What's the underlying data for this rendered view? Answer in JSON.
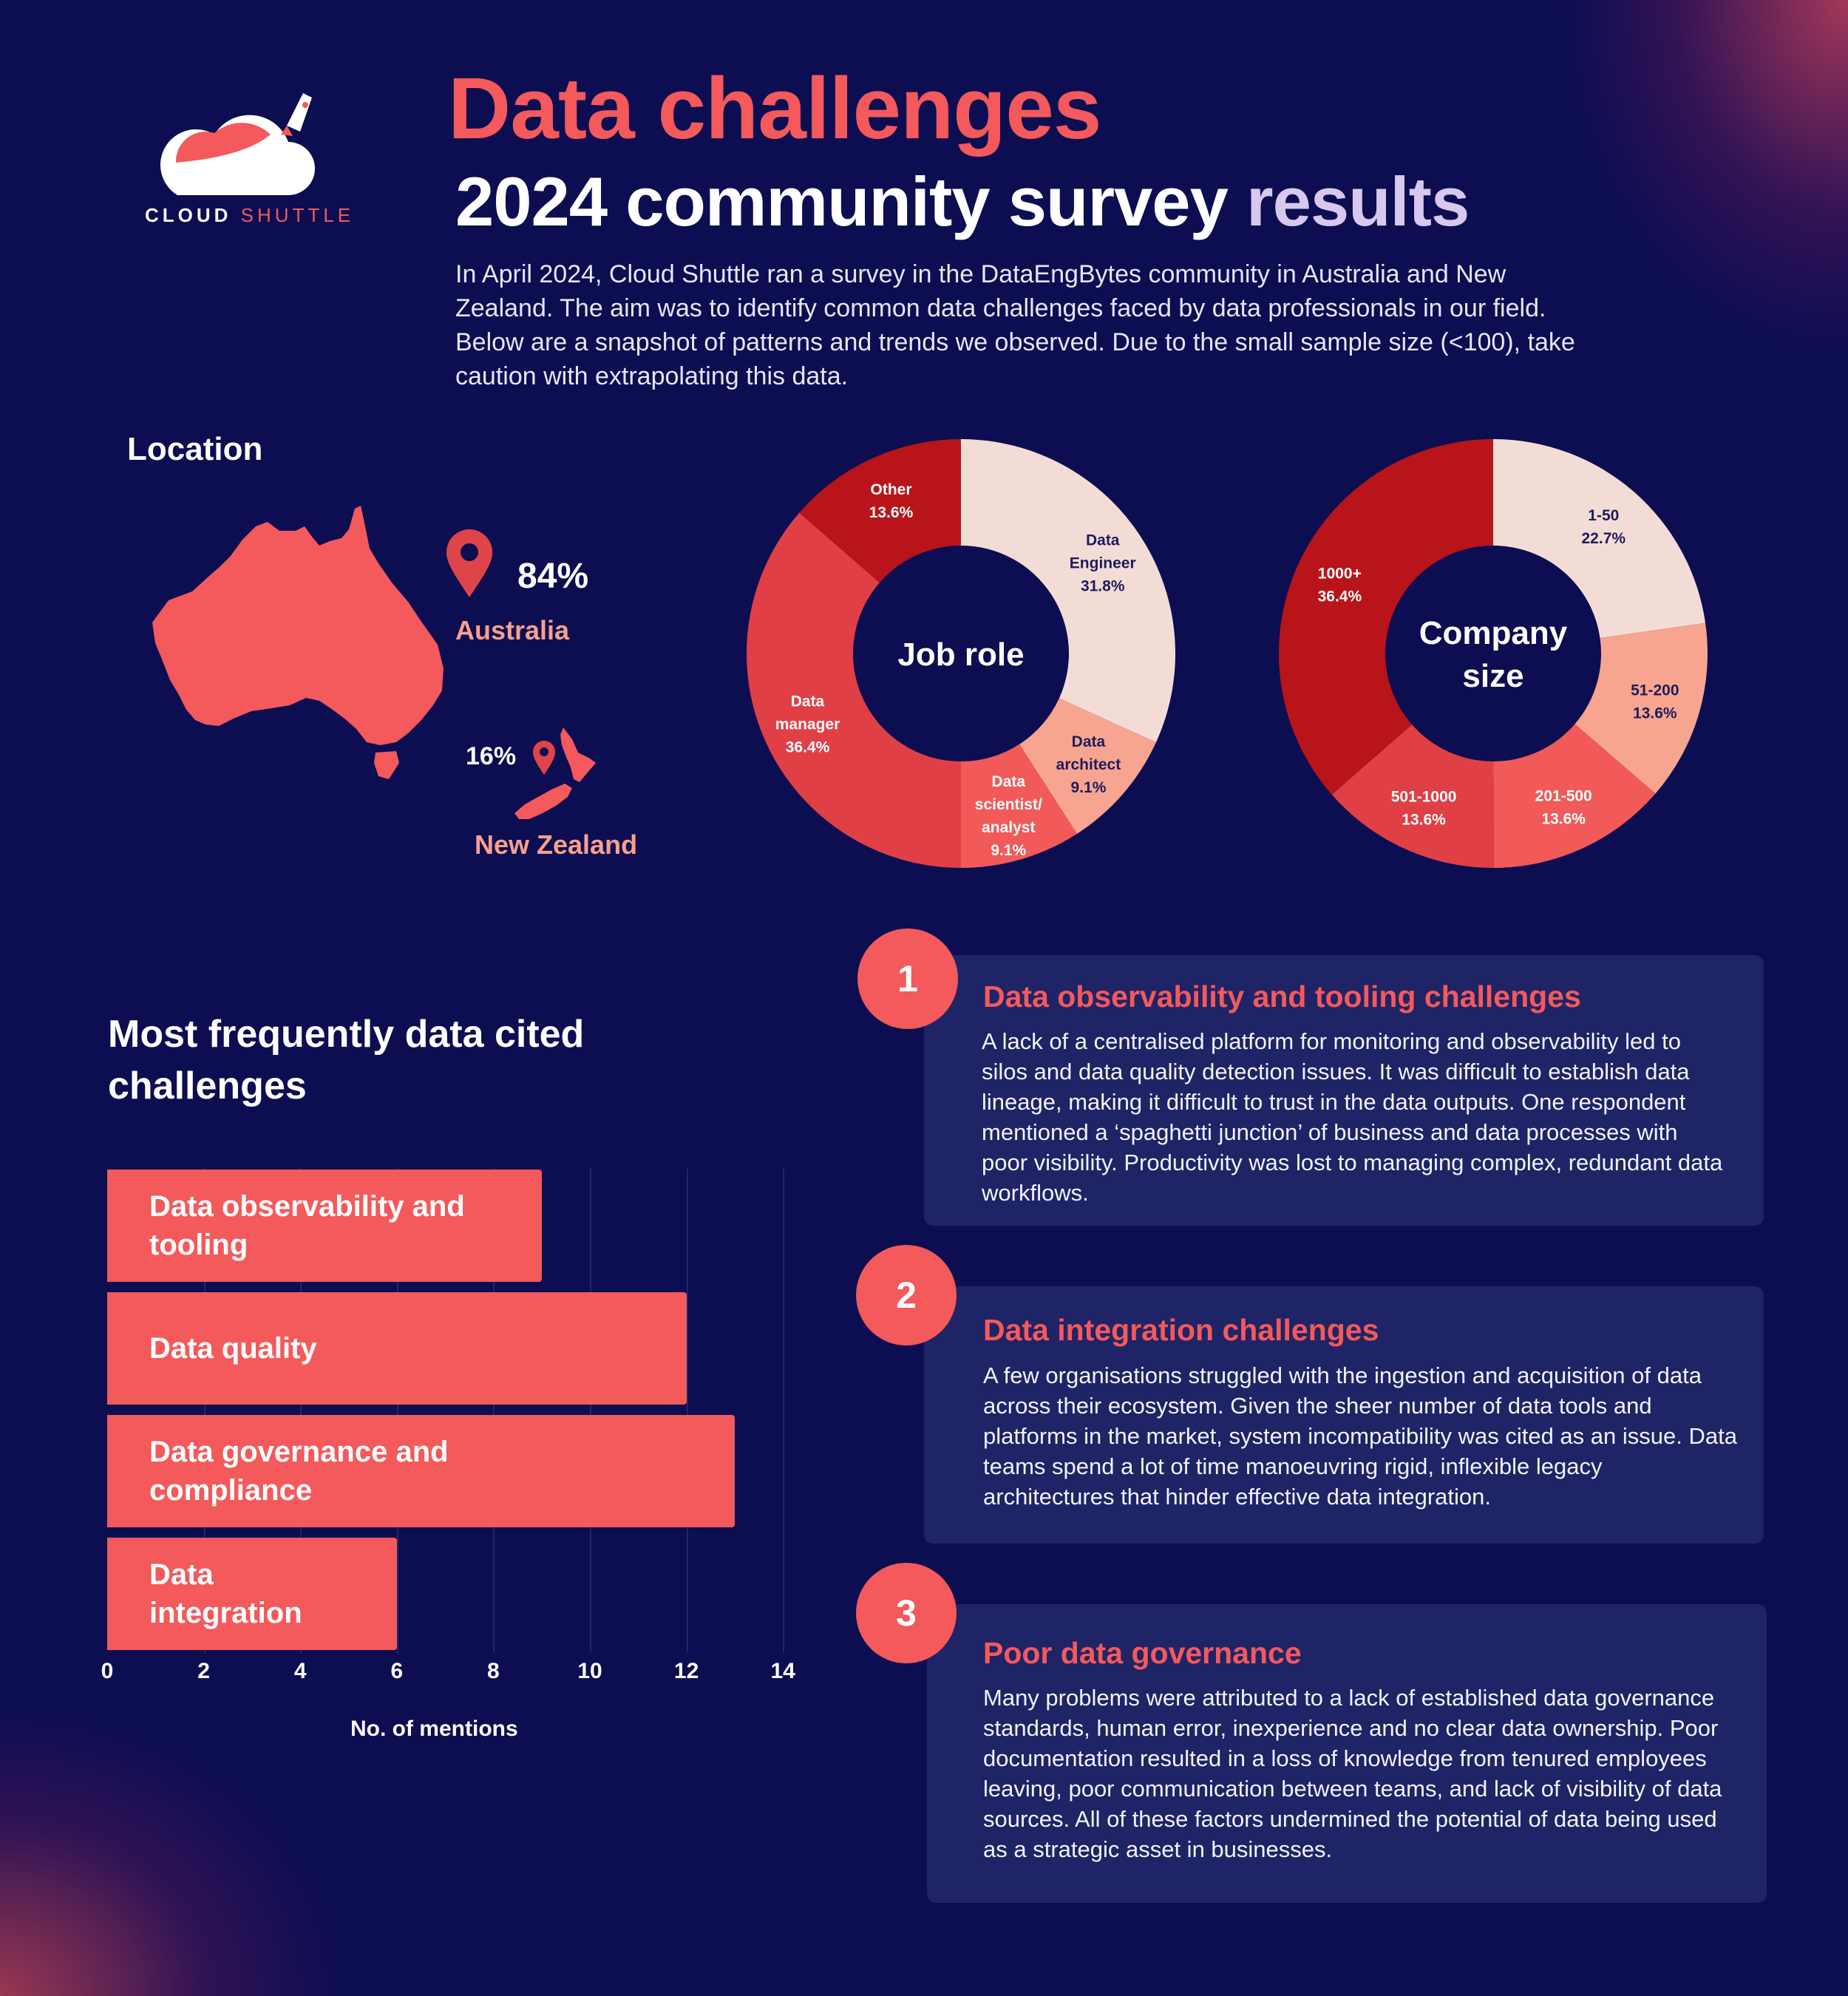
{
  "brand": {
    "name_part1": "CLOUD",
    "name_part2": "SHUTTLE"
  },
  "header": {
    "title": "Data challenges",
    "subtitle_main": "2024 community survey",
    "subtitle_accent": "results",
    "intro": "In April 2024, Cloud Shuttle ran a survey in the DataEngBytes community in Australia and New Zealand. The aim was to identify common data challenges faced by data professionals in our field. Below are a snapshot of patterns and trends we observed. Due to the small sample size (<100), take caution with extrapolating this data."
  },
  "location": {
    "title": "Location",
    "australia": {
      "percent": "84%",
      "label": "Australia"
    },
    "new_zealand": {
      "percent": "16%",
      "label": "New Zealand"
    }
  },
  "colors": {
    "background": "#0d0d52",
    "accent": "#f4595b",
    "card": "#1f2466",
    "label_accent": "#f7a08c"
  },
  "chart_data": [
    {
      "type": "pie",
      "title": "Job role",
      "slices": [
        {
          "label_lines": [
            "Data",
            "Engineer"
          ],
          "value": 31.8,
          "value_label": "31.8%",
          "color": "#f4dcd6",
          "text_color": "#1d1d5c"
        },
        {
          "label_lines": [
            "Data",
            "architect"
          ],
          "value": 9.1,
          "value_label": "9.1%",
          "color": "#f7a590",
          "text_color": "#1d1d5c"
        },
        {
          "label_lines": [
            "Data",
            "scientist/",
            "analyst"
          ],
          "value": 9.1,
          "value_label": "9.1%",
          "color": "#f15a59",
          "text_color": "#ffffff"
        },
        {
          "label_lines": [
            "Data",
            "manager"
          ],
          "value": 36.4,
          "value_label": "36.4%",
          "color": "#e13f46",
          "text_color": "#ffffff"
        },
        {
          "label_lines": [
            "Other"
          ],
          "value": 13.6,
          "value_label": "13.6%",
          "color": "#b81419",
          "text_color": "#ffffff"
        }
      ]
    },
    {
      "type": "pie",
      "title": "Company size",
      "title_lines": [
        "Company",
        "size"
      ],
      "slices": [
        {
          "label_lines": [
            "1-50"
          ],
          "value": 22.7,
          "value_label": "22.7%",
          "color": "#f4dcd6",
          "text_color": "#1d1d5c"
        },
        {
          "label_lines": [
            "51-200"
          ],
          "value": 13.6,
          "value_label": "13.6%",
          "color": "#f7a590",
          "text_color": "#1d1d5c"
        },
        {
          "label_lines": [
            "201-500"
          ],
          "value": 13.6,
          "value_label": "13.6%",
          "color": "#f15a59",
          "text_color": "#ffffff"
        },
        {
          "label_lines": [
            "501-1000"
          ],
          "value": 13.6,
          "value_label": "13.6%",
          "color": "#e13f46",
          "text_color": "#ffffff"
        },
        {
          "label_lines": [
            "1000+"
          ],
          "value": 36.4,
          "value_label": "36.4%",
          "color": "#b81419",
          "text_color": "#ffffff"
        }
      ]
    },
    {
      "type": "bar",
      "orientation": "horizontal",
      "title": "Most frequently data cited challenges",
      "categories": [
        [
          "Data observability and",
          "tooling"
        ],
        [
          "Data quality"
        ],
        [
          "Data governance and",
          "compliance"
        ],
        [
          "Data",
          "integration"
        ]
      ],
      "values": [
        9,
        12,
        13,
        6
      ],
      "xlabel": "No. of mentions",
      "xlim": [
        0,
        14
      ],
      "xticks": [
        "0",
        "2",
        "4",
        "6",
        "8",
        "10",
        "12",
        "14"
      ],
      "grid": true,
      "bar_color": "#f4595b"
    }
  ],
  "challenges": [
    {
      "number": "1",
      "title": "Data observability and tooling challenges",
      "body": "A lack of a centralised platform for monitoring and observability led to silos and data quality detection issues. It was difficult to establish data lineage, making it difficult to trust in the data outputs. One respondent mentioned a ‘spaghetti junction’ of business and data processes with poor visibility. Productivity was lost to managing complex, redundant data workflows."
    },
    {
      "number": "2",
      "title": "Data integration challenges",
      "body": "A few organisations struggled with the ingestion and acquisition of data across their ecosystem. Given the sheer number of data tools and platforms in the market, system incompatibility was cited as an issue. Data teams spend a lot of time manoeuvring rigid, inflexible legacy architectures that hinder effective data integration."
    },
    {
      "number": "3",
      "title": "Poor data governance",
      "body": "Many problems were attributed to a lack of established data governance standards, human error, inexperience and no clear data ownership. Poor documentation resulted in a loss of knowledge from tenured employees leaving, poor communication between teams, and lack of visibility of data sources. All of these factors undermined the potential of data being used as a strategic asset in businesses."
    }
  ]
}
